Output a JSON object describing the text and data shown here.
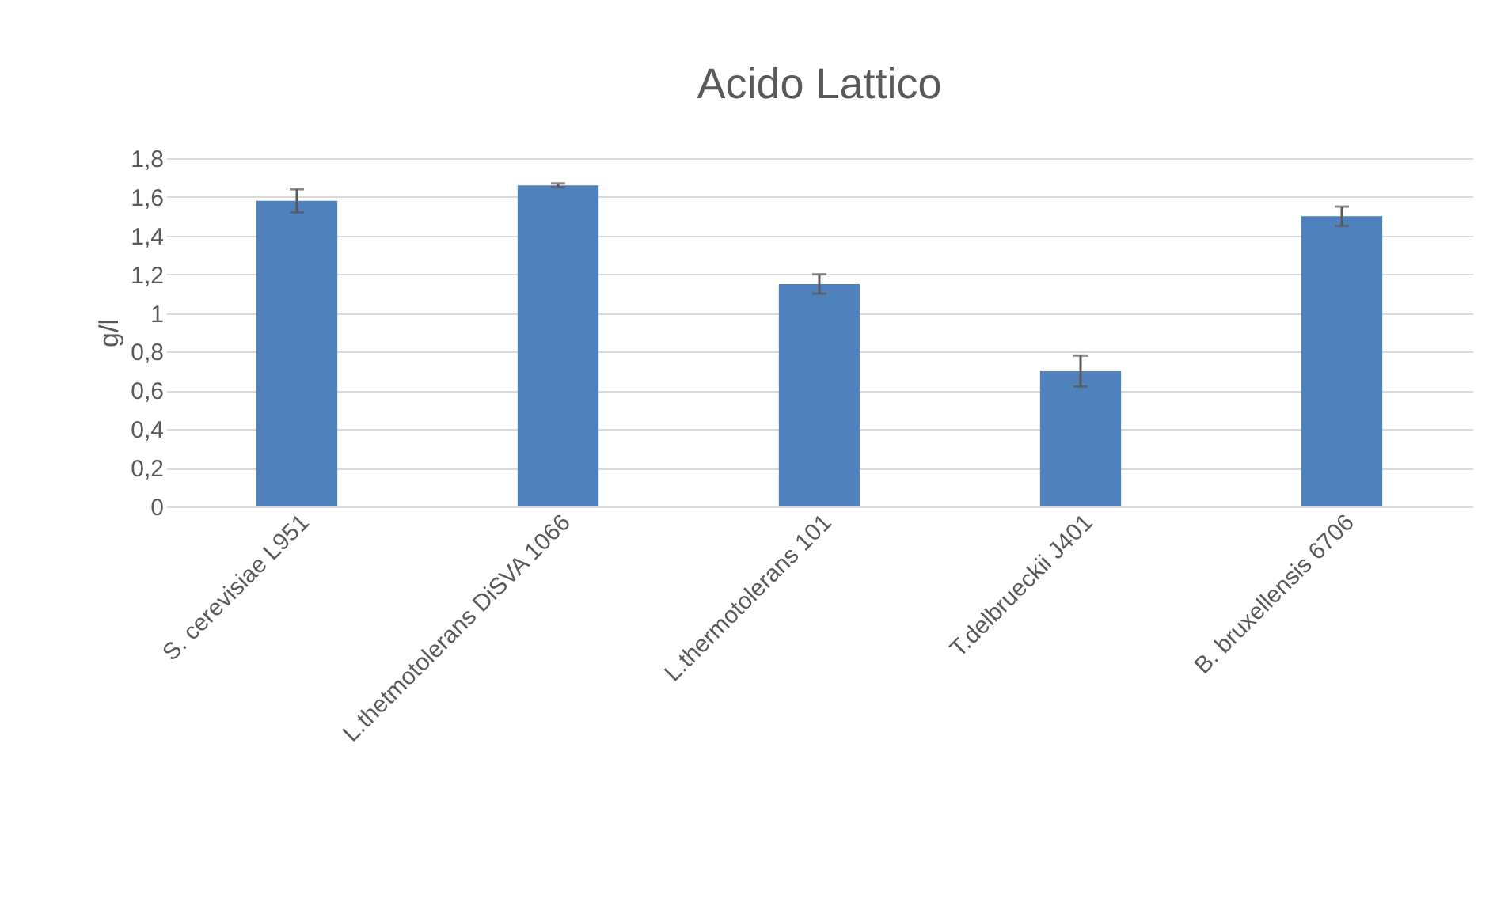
{
  "chart_data": {
    "type": "bar",
    "title": "Acido Lattico",
    "ylabel": "g/l",
    "categories": [
      "S. cerevisiae L951",
      "L.thetmotolerans DiSVA 1066",
      "L.thermotolerans 101",
      "T.delbrueckii J401",
      "B. bruxellensis 6706"
    ],
    "values": [
      1.58,
      1.66,
      1.15,
      0.7,
      1.5
    ],
    "errors": [
      0.06,
      0.01,
      0.05,
      0.08,
      0.05
    ],
    "color": "#4f81bd",
    "ylim": [
      0,
      1.8
    ],
    "yticks": [
      0,
      {
        "value": 0.2,
        "label": "0,2"
      },
      {
        "value": 0.4,
        "label": "0,4"
      },
      {
        "value": 0.6,
        "label": "0,6"
      },
      {
        "value": 0.8,
        "label": "0,8"
      },
      1,
      {
        "value": 1.2,
        "label": "1,2"
      },
      {
        "value": 1.4,
        "label": "1,4"
      },
      {
        "value": 1.6,
        "label": "1,6"
      },
      {
        "value": 1.8,
        "label": "1,8"
      }
    ],
    "grid": "y"
  }
}
